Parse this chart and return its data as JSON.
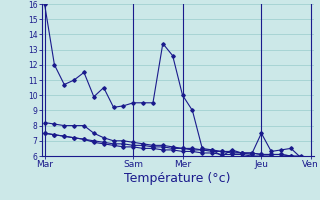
{
  "background_color": "#cce8e8",
  "grid_color": "#99cccc",
  "line_color": "#1a1a8c",
  "xlabel": "Température (°c)",
  "xlabel_fontsize": 9,
  "ylim": [
    6,
    16
  ],
  "yticks": [
    6,
    7,
    8,
    9,
    10,
    11,
    12,
    13,
    14,
    15,
    16
  ],
  "xtick_labels": [
    "Mar",
    "Sam",
    "Mer",
    "Jeu",
    "Ven"
  ],
  "xtick_positions": [
    0,
    9,
    14,
    22,
    27
  ],
  "n_points": 28,
  "series1": [
    16,
    12.0,
    10.7,
    11.0,
    11.5,
    9.9,
    10.5,
    9.2,
    9.3,
    9.5,
    9.5,
    9.5,
    13.4,
    12.6,
    10.0,
    9.0,
    6.5,
    6.4,
    6.0,
    6.4,
    6.2,
    6.1,
    7.5,
    6.3,
    6.4,
    6.5,
    5.9,
    5.8
  ],
  "series2": [
    8.2,
    8.1,
    8.0,
    8.0,
    8.0,
    7.5,
    7.2,
    7.0,
    7.0,
    6.9,
    6.8,
    6.7,
    6.7,
    6.6,
    6.5,
    6.5,
    6.4,
    6.4,
    6.3,
    6.3,
    6.2,
    6.2,
    6.1,
    6.1,
    6.1,
    6.0,
    6.0,
    5.9
  ],
  "series3": [
    7.5,
    7.4,
    7.3,
    7.2,
    7.1,
    7.0,
    6.9,
    6.8,
    6.8,
    6.7,
    6.7,
    6.6,
    6.6,
    6.5,
    6.5,
    6.4,
    6.4,
    6.3,
    6.3,
    6.2,
    6.2,
    6.2,
    6.1,
    6.1,
    6.1,
    6.0,
    5.9,
    5.8
  ],
  "series4": [
    7.5,
    7.4,
    7.3,
    7.2,
    7.1,
    6.9,
    6.8,
    6.7,
    6.6,
    6.6,
    6.5,
    6.5,
    6.4,
    6.4,
    6.3,
    6.3,
    6.2,
    6.2,
    6.1,
    6.1,
    6.1,
    6.0,
    6.0,
    6.0,
    5.9,
    5.9,
    5.8,
    5.7
  ]
}
